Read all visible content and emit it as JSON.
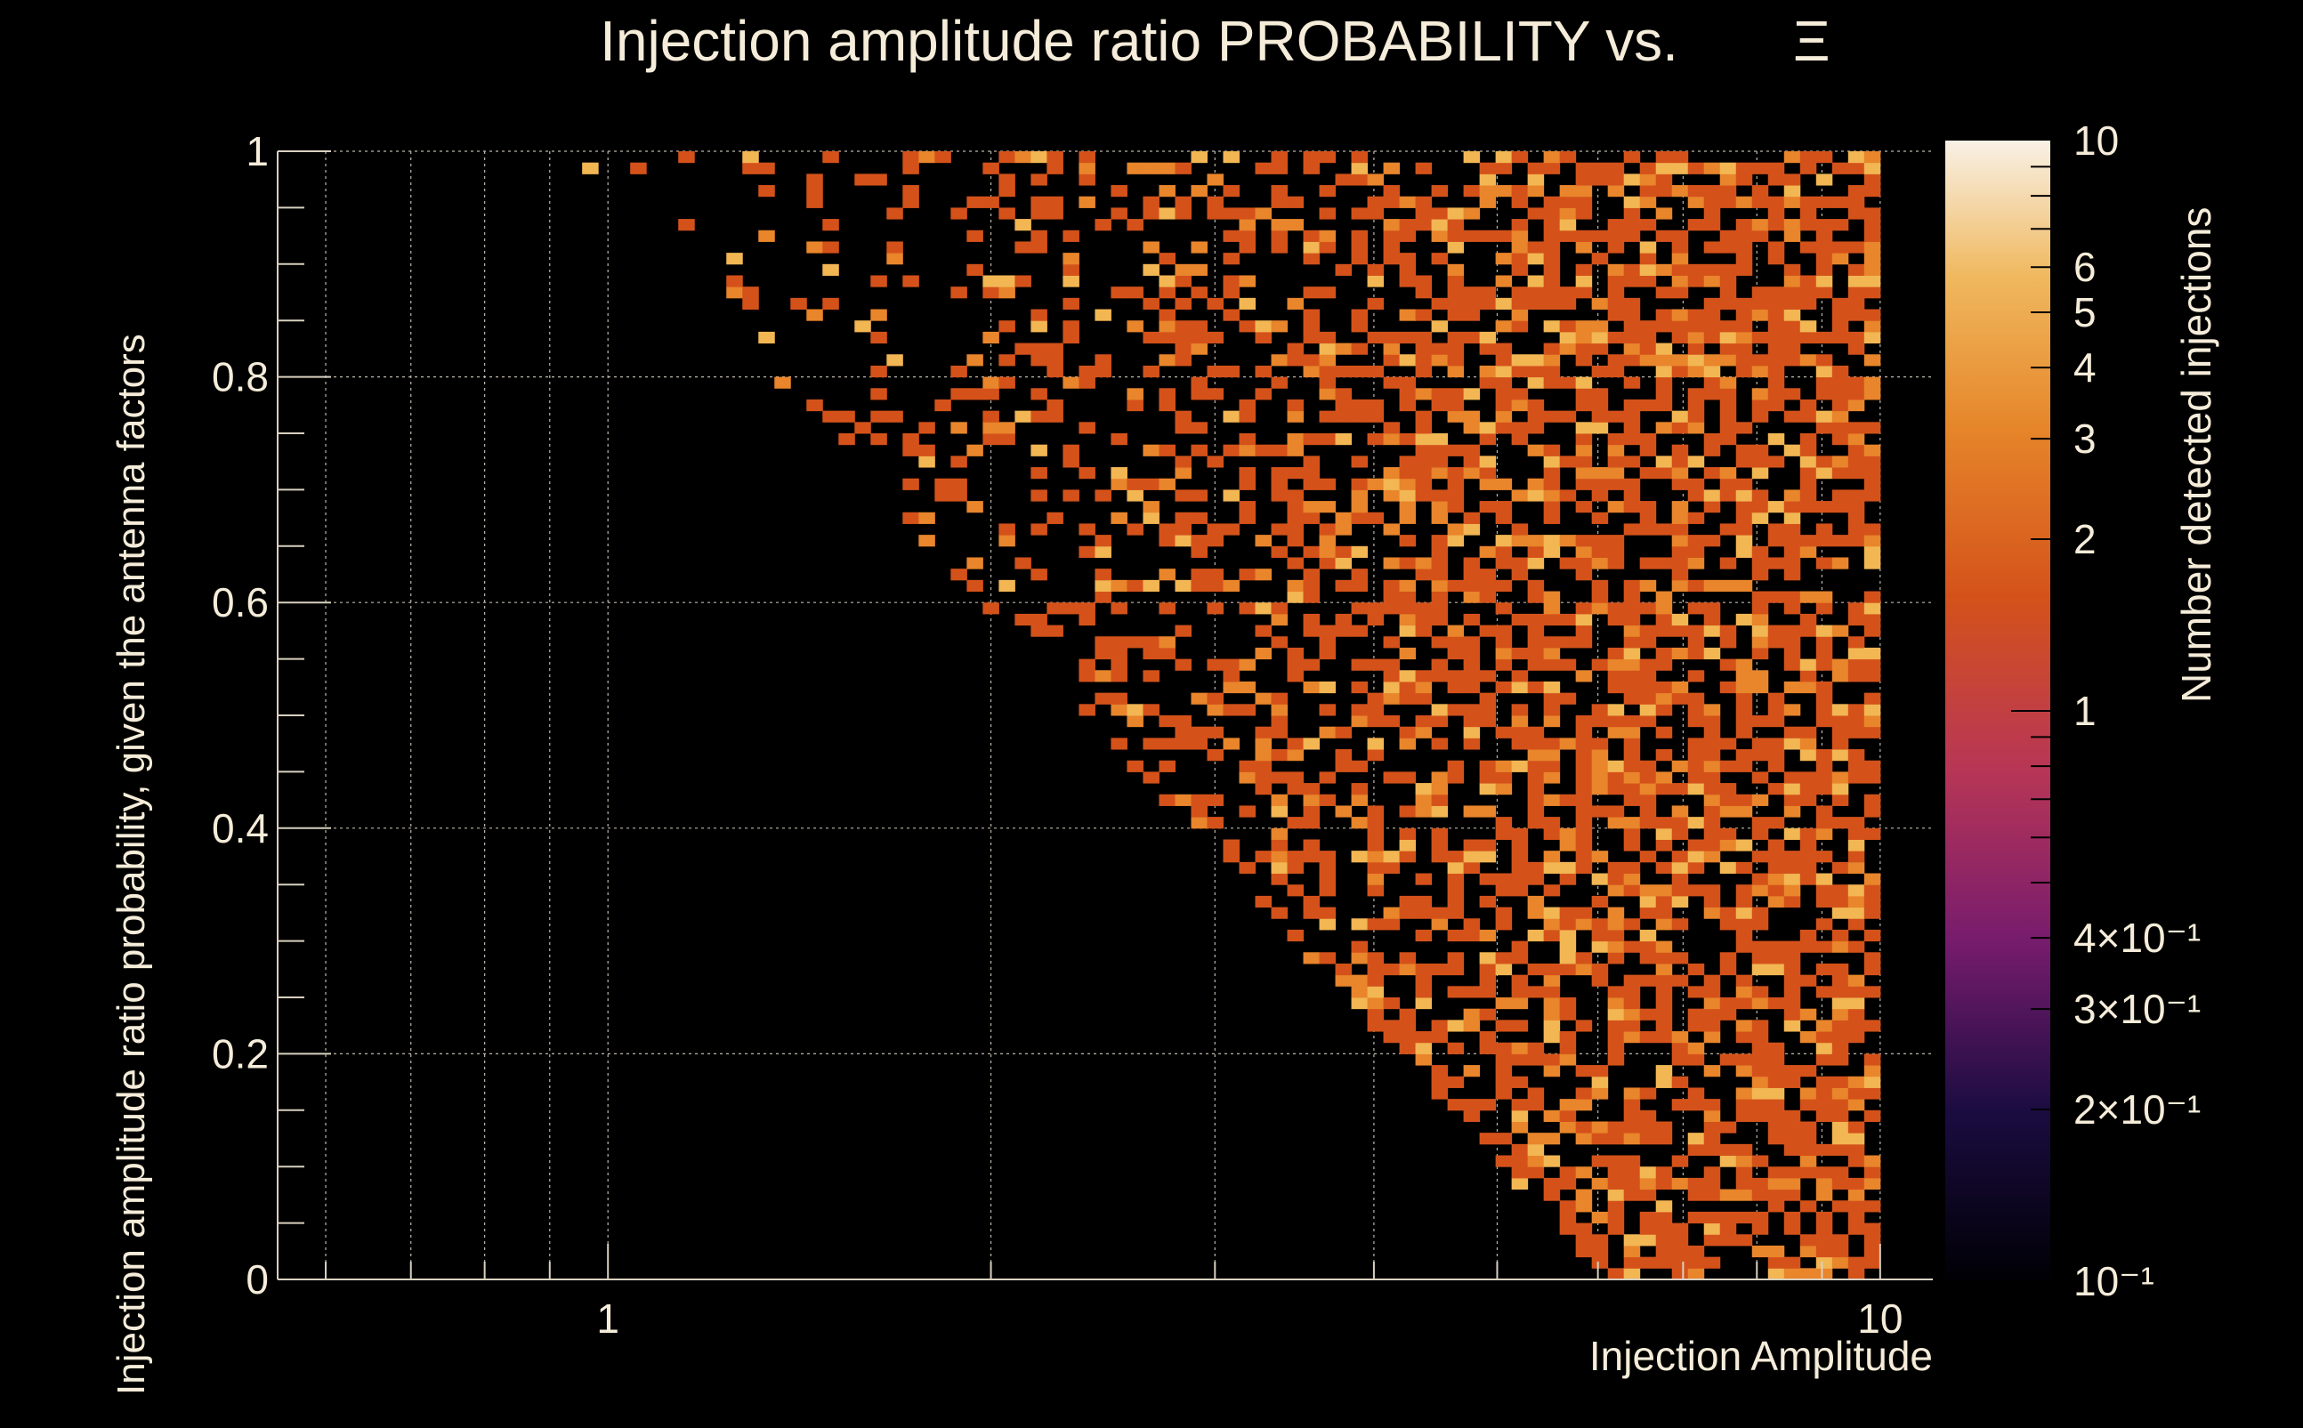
{
  "chart_data": {
    "type": "heatmap",
    "title": "Injection amplitude ratio PROBABILITY vs.",
    "title_symbol": "Ξ",
    "xlabel": "Injection Amplitude",
    "ylabel": "Injection amplitude ratio probability, given the antenna factors",
    "colorbar_label": "Number detected injections",
    "x_scale": "log",
    "xlim": [
      0.55,
      11
    ],
    "ylim": [
      0,
      1
    ],
    "x_major_ticks": [
      {
        "value": 1,
        "label": "1"
      },
      {
        "value": 10,
        "label": "10"
      }
    ],
    "y_major_ticks": [
      {
        "value": 0,
        "label": "0"
      },
      {
        "value": 0.2,
        "label": "0.2"
      },
      {
        "value": 0.4,
        "label": "0.4"
      },
      {
        "value": 0.6,
        "label": "0.6"
      },
      {
        "value": 0.8,
        "label": "0.8"
      },
      {
        "value": 1,
        "label": "1"
      }
    ],
    "z_scale": "log",
    "zlim": [
      0.1,
      10
    ],
    "colorbar_ticks": [
      {
        "value": 10,
        "label": "10"
      },
      {
        "value": 6,
        "label": "6"
      },
      {
        "value": 5,
        "label": "5"
      },
      {
        "value": 4,
        "label": "4"
      },
      {
        "value": 3,
        "label": "3"
      },
      {
        "value": 2,
        "label": "2"
      },
      {
        "value": 1,
        "label": "1"
      },
      {
        "value": 0.4,
        "label": "4×10⁻¹"
      },
      {
        "value": 0.3,
        "label": "3×10⁻¹"
      },
      {
        "value": 0.2,
        "label": "2×10⁻¹"
      },
      {
        "value": 0.1,
        "label": "10⁻¹"
      }
    ],
    "palette": [
      "#000004",
      "#1b0c41",
      "#4a0c6b",
      "#781c6d",
      "#a52c60",
      "#cf4446",
      "#d4521a",
      "#e07a1c",
      "#eda43e",
      "#f3c978",
      "#f8f1e6"
    ],
    "grid": true,
    "bins": {
      "x_bins": 100,
      "y_bins": 100,
      "x_min": 0.55,
      "x_max": 10
    },
    "density_note": "",
    "cells_seed": 7
  },
  "colors": {
    "background": "#000000",
    "text": "#f5ecd9",
    "axis": "#d8d0c0",
    "grid": "#bdb7aa",
    "cell_low": "#d4521a",
    "cell_mid": "#e9852b",
    "cell_high": "#f2b653"
  }
}
